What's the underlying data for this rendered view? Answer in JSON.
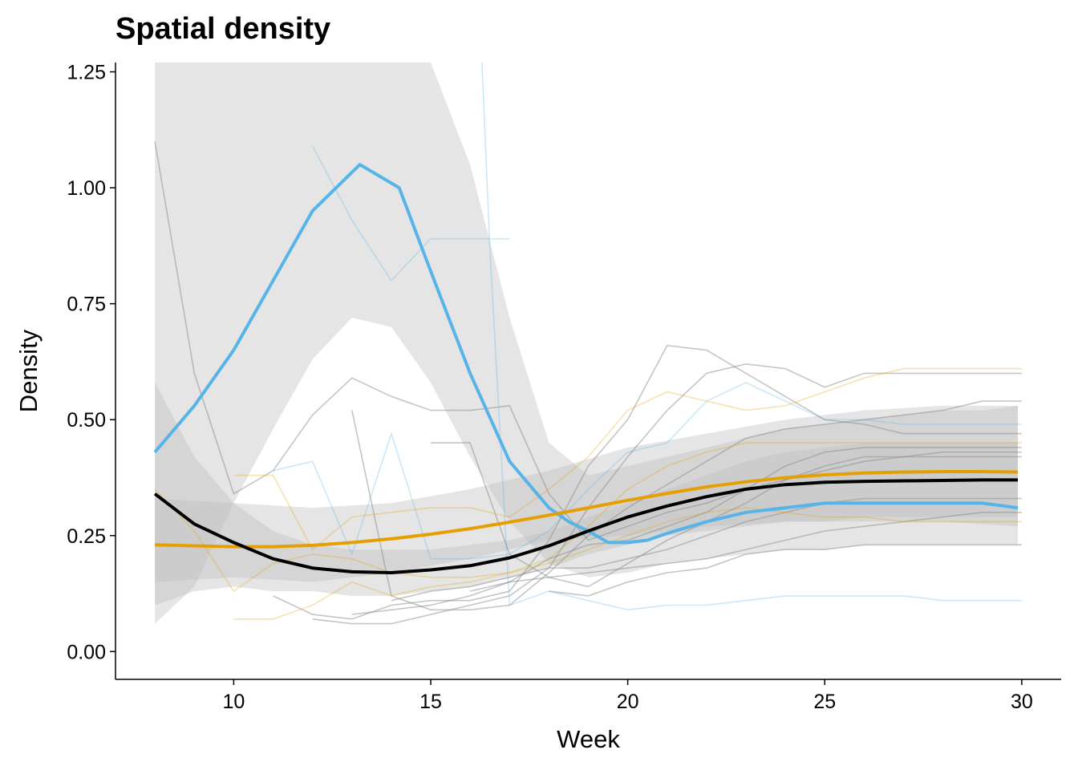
{
  "chart_data": {
    "type": "line",
    "title": "Spatial density",
    "xlabel": "Week",
    "ylabel": "Density",
    "xlim": [
      7,
      31
    ],
    "ylim": [
      -0.06,
      1.27
    ],
    "x_ticks": [
      10,
      15,
      20,
      25,
      30
    ],
    "y_ticks": [
      0.0,
      0.25,
      0.5,
      0.75,
      1.0,
      1.25
    ],
    "y_tick_labels": [
      "0.00",
      "0.25",
      "0.50",
      "0.75",
      "1.00",
      "1.25"
    ],
    "grid": false,
    "legend": "none",
    "colors": {
      "blue": "#56B4E9",
      "orange": "#E69F00",
      "black": "#000000",
      "ribbon": "#BDBDBD",
      "thin_grey": "#8C8C8C"
    },
    "ribbons": [
      {
        "color": "blue",
        "x": [
          8,
          9,
          10,
          11,
          12,
          13,
          14,
          15,
          16,
          17,
          18,
          19,
          20,
          21,
          22,
          23,
          24,
          25,
          26,
          27,
          28,
          29,
          29.9
        ],
        "upper": [
          1.27,
          1.27,
          1.27,
          1.27,
          1.27,
          1.27,
          1.27,
          1.27,
          1.05,
          0.72,
          0.45,
          0.38,
          0.4,
          0.42,
          0.44,
          0.46,
          0.48,
          0.49,
          0.5,
          0.51,
          0.52,
          0.52,
          0.53
        ],
        "lower": [
          0.06,
          0.14,
          0.32,
          0.48,
          0.63,
          0.72,
          0.7,
          0.58,
          0.42,
          0.28,
          0.19,
          0.16,
          0.17,
          0.19,
          0.2,
          0.21,
          0.22,
          0.22,
          0.23,
          0.23,
          0.23,
          0.23,
          0.23
        ]
      },
      {
        "color": "orange",
        "x": [
          8,
          10,
          12,
          14,
          16,
          18,
          20,
          22,
          24,
          26,
          28,
          29.9
        ],
        "upper": [
          0.33,
          0.32,
          0.31,
          0.32,
          0.35,
          0.39,
          0.44,
          0.47,
          0.5,
          0.52,
          0.53,
          0.53
        ],
        "lower": [
          0.15,
          0.16,
          0.15,
          0.17,
          0.2,
          0.24,
          0.25,
          0.27,
          0.28,
          0.28,
          0.28,
          0.27
        ]
      },
      {
        "color": "black",
        "x": [
          8,
          9,
          10,
          11,
          12,
          13,
          14,
          15,
          16,
          17,
          18,
          19,
          20,
          21,
          22,
          23,
          24,
          25,
          26,
          27,
          28,
          29,
          29.9
        ],
        "upper": [
          0.58,
          0.42,
          0.32,
          0.26,
          0.23,
          0.22,
          0.22,
          0.22,
          0.23,
          0.24,
          0.26,
          0.29,
          0.32,
          0.35,
          0.38,
          0.41,
          0.43,
          0.44,
          0.45,
          0.45,
          0.45,
          0.45,
          0.45
        ],
        "lower": [
          0.1,
          0.13,
          0.14,
          0.13,
          0.13,
          0.12,
          0.12,
          0.13,
          0.14,
          0.16,
          0.18,
          0.21,
          0.23,
          0.25,
          0.26,
          0.27,
          0.28,
          0.28,
          0.29,
          0.29,
          0.29,
          0.29,
          0.29
        ]
      }
    ],
    "series": [
      {
        "color": "blue",
        "width": 4,
        "x": [
          8,
          9,
          10,
          11,
          12,
          13.2,
          14.2,
          15,
          16,
          17,
          18,
          18.5,
          19,
          19.5,
          20,
          20.5,
          21,
          22,
          23,
          24,
          25,
          26,
          27,
          28,
          29,
          29.9
        ],
        "y": [
          0.43,
          0.53,
          0.65,
          0.8,
          0.95,
          1.05,
          1.0,
          0.82,
          0.6,
          0.41,
          0.31,
          0.28,
          0.26,
          0.235,
          0.235,
          0.24,
          0.255,
          0.28,
          0.3,
          0.31,
          0.32,
          0.32,
          0.32,
          0.32,
          0.32,
          0.31
        ]
      },
      {
        "color": "orange",
        "width": 4,
        "x": [
          8,
          9,
          10,
          11,
          12,
          13,
          14,
          15,
          16,
          17,
          18,
          19,
          20,
          21,
          22,
          23,
          24,
          25,
          26,
          27,
          28,
          29,
          29.9
        ],
        "y": [
          0.23,
          0.228,
          0.226,
          0.226,
          0.229,
          0.235,
          0.243,
          0.253,
          0.265,
          0.279,
          0.294,
          0.31,
          0.326,
          0.341,
          0.355,
          0.366,
          0.375,
          0.381,
          0.385,
          0.387,
          0.388,
          0.388,
          0.387
        ]
      },
      {
        "color": "black",
        "width": 4,
        "x": [
          8,
          9,
          10,
          11,
          12,
          13,
          14,
          15,
          16,
          17,
          18,
          19,
          20,
          21,
          22,
          23,
          24,
          25,
          26,
          27,
          28,
          29,
          29.9
        ],
        "y": [
          0.34,
          0.275,
          0.235,
          0.2,
          0.18,
          0.172,
          0.17,
          0.176,
          0.185,
          0.202,
          0.228,
          0.26,
          0.29,
          0.314,
          0.334,
          0.35,
          0.36,
          0.365,
          0.367,
          0.368,
          0.369,
          0.37,
          0.37
        ]
      }
    ],
    "individual_tracks": [
      {
        "color": "thin_grey",
        "x": [
          8,
          9,
          10,
          11,
          12,
          13,
          14,
          15,
          16,
          17,
          18,
          19,
          20,
          21,
          22,
          23,
          24,
          25,
          26,
          27,
          28,
          29,
          30
        ],
        "y": [
          1.1,
          0.6,
          0.34,
          0.39,
          0.51,
          0.59,
          0.55,
          0.52,
          0.52,
          0.53,
          0.34,
          0.24,
          0.27,
          0.3,
          0.32,
          0.35,
          0.37,
          0.39,
          0.41,
          0.42,
          0.43,
          0.43,
          0.43
        ]
      },
      {
        "color": "thin_grey",
        "x": [
          12,
          13,
          14,
          15,
          16,
          17,
          18,
          19,
          20,
          21,
          22,
          23,
          24,
          25,
          26,
          27,
          28,
          29,
          30
        ],
        "y": [
          0.07,
          0.06,
          0.06,
          0.08,
          0.1,
          0.12,
          0.18,
          0.31,
          0.42,
          0.52,
          0.6,
          0.62,
          0.61,
          0.57,
          0.6,
          0.6,
          0.6,
          0.6,
          0.6
        ]
      },
      {
        "color": "thin_grey",
        "x": [
          11,
          12,
          13,
          14,
          15,
          16,
          17,
          18,
          19,
          20,
          21,
          22,
          23,
          24,
          25,
          26,
          27,
          28,
          29,
          30
        ],
        "y": [
          0.12,
          0.08,
          0.07,
          0.1,
          0.11,
          0.11,
          0.13,
          0.24,
          0.4,
          0.5,
          0.66,
          0.65,
          0.6,
          0.55,
          0.5,
          0.49,
          0.47,
          0.47,
          0.47,
          0.47
        ]
      },
      {
        "color": "thin_grey",
        "x": [
          13,
          14,
          15,
          16,
          17,
          18,
          19,
          20,
          21,
          22,
          23,
          24,
          25,
          26,
          27,
          28,
          29,
          30
        ],
        "y": [
          0.52,
          0.12,
          0.09,
          0.09,
          0.1,
          0.17,
          0.25,
          0.31,
          0.36,
          0.41,
          0.46,
          0.48,
          0.49,
          0.5,
          0.51,
          0.52,
          0.54,
          0.54
        ]
      },
      {
        "color": "thin_grey",
        "x": [
          15,
          16,
          17,
          18,
          19,
          20,
          21,
          22,
          23,
          24,
          25,
          26,
          27,
          28,
          29,
          30
        ],
        "y": [
          0.45,
          0.45,
          0.21,
          0.16,
          0.14,
          0.19,
          0.24,
          0.28,
          0.32,
          0.37,
          0.4,
          0.42,
          0.42,
          0.42,
          0.42,
          0.42
        ]
      },
      {
        "color": "thin_grey",
        "x": [
          13,
          14,
          15,
          16,
          17,
          18,
          19,
          20,
          21,
          22,
          23,
          24,
          25,
          26,
          27,
          28,
          29,
          30
        ],
        "y": [
          0.08,
          0.09,
          0.1,
          0.12,
          0.15,
          0.2,
          0.23,
          0.24,
          0.27,
          0.3,
          0.35,
          0.4,
          0.43,
          0.44,
          0.44,
          0.44,
          0.44,
          0.44
        ]
      },
      {
        "color": "thin_grey",
        "x": [
          14,
          15,
          16,
          17,
          18,
          19,
          20,
          21,
          22,
          23,
          24,
          25,
          26,
          27,
          28,
          29,
          30
        ],
        "y": [
          0.11,
          0.13,
          0.14,
          0.16,
          0.18,
          0.18,
          0.2,
          0.22,
          0.25,
          0.28,
          0.3,
          0.32,
          0.33,
          0.33,
          0.33,
          0.33,
          0.33
        ]
      },
      {
        "color": "thin_grey",
        "x": [
          16,
          17,
          18,
          19,
          20,
          21,
          22,
          23,
          24,
          25,
          26,
          27,
          28,
          29,
          30
        ],
        "y": [
          0.13,
          0.15,
          0.16,
          0.17,
          0.18,
          0.19,
          0.2,
          0.22,
          0.24,
          0.26,
          0.27,
          0.28,
          0.29,
          0.3,
          0.3
        ]
      },
      {
        "color": "thin_grey",
        "x": [
          18,
          19,
          20,
          21,
          22,
          23,
          24,
          25,
          26,
          27,
          28,
          29,
          30
        ],
        "y": [
          0.13,
          0.12,
          0.15,
          0.17,
          0.18,
          0.21,
          0.22,
          0.22,
          0.23,
          0.23,
          0.23,
          0.23,
          0.23
        ]
      },
      {
        "color": "blue",
        "x": [
          12,
          13,
          14,
          15,
          16,
          17
        ],
        "y": [
          1.09,
          0.93,
          0.8,
          0.89,
          0.89,
          0.89
        ]
      },
      {
        "color": "blue",
        "x": [
          16.3,
          16.5,
          17,
          18,
          19,
          20,
          21,
          22,
          23,
          24,
          25,
          26,
          27,
          28,
          29,
          30
        ],
        "y": [
          1.27,
          0.87,
          0.1,
          0.13,
          0.11,
          0.09,
          0.1,
          0.1,
          0.11,
          0.12,
          0.12,
          0.12,
          0.12,
          0.11,
          0.11,
          0.11
        ]
      },
      {
        "color": "blue",
        "x": [
          11,
          12,
          13,
          14,
          15,
          16,
          17,
          18,
          19,
          20,
          21,
          22,
          23,
          24,
          25,
          26,
          27,
          28,
          29,
          30
        ],
        "y": [
          0.39,
          0.41,
          0.21,
          0.47,
          0.2,
          0.2,
          0.21,
          0.26,
          0.35,
          0.43,
          0.45,
          0.54,
          0.58,
          0.54,
          0.5,
          0.5,
          0.49,
          0.49,
          0.49,
          0.49
        ]
      },
      {
        "color": "orange",
        "x": [
          10,
          11,
          12,
          13,
          14,
          15,
          16,
          17,
          18,
          19,
          20,
          21,
          22,
          23,
          24,
          25,
          26,
          27,
          28,
          29,
          30
        ],
        "y": [
          0.38,
          0.38,
          0.22,
          0.29,
          0.3,
          0.31,
          0.31,
          0.29,
          0.35,
          0.42,
          0.52,
          0.56,
          0.54,
          0.52,
          0.53,
          0.56,
          0.59,
          0.61,
          0.61,
          0.61,
          0.61
        ]
      },
      {
        "color": "orange",
        "x": [
          10,
          11,
          12,
          13,
          14,
          15,
          16,
          17,
          18,
          19,
          20,
          21,
          22,
          23,
          24,
          25,
          26,
          27,
          28,
          29,
          30
        ],
        "y": [
          0.07,
          0.07,
          0.1,
          0.15,
          0.12,
          0.14,
          0.15,
          0.17,
          0.2,
          0.27,
          0.35,
          0.4,
          0.43,
          0.45,
          0.45,
          0.45,
          0.45,
          0.45,
          0.45,
          0.45,
          0.45
        ]
      },
      {
        "color": "orange",
        "x": [
          8,
          9,
          10,
          11,
          12,
          13,
          14,
          15,
          16,
          17,
          18,
          19,
          20,
          21,
          22,
          23,
          24,
          25,
          26,
          27,
          28,
          29,
          30
        ],
        "y": [
          0.35,
          0.26,
          0.13,
          0.19,
          0.21,
          0.2,
          0.17,
          0.16,
          0.16,
          0.17,
          0.19,
          0.22,
          0.25,
          0.28,
          0.3,
          0.31,
          0.3,
          0.29,
          0.29,
          0.28,
          0.28,
          0.28,
          0.28
        ]
      }
    ]
  }
}
